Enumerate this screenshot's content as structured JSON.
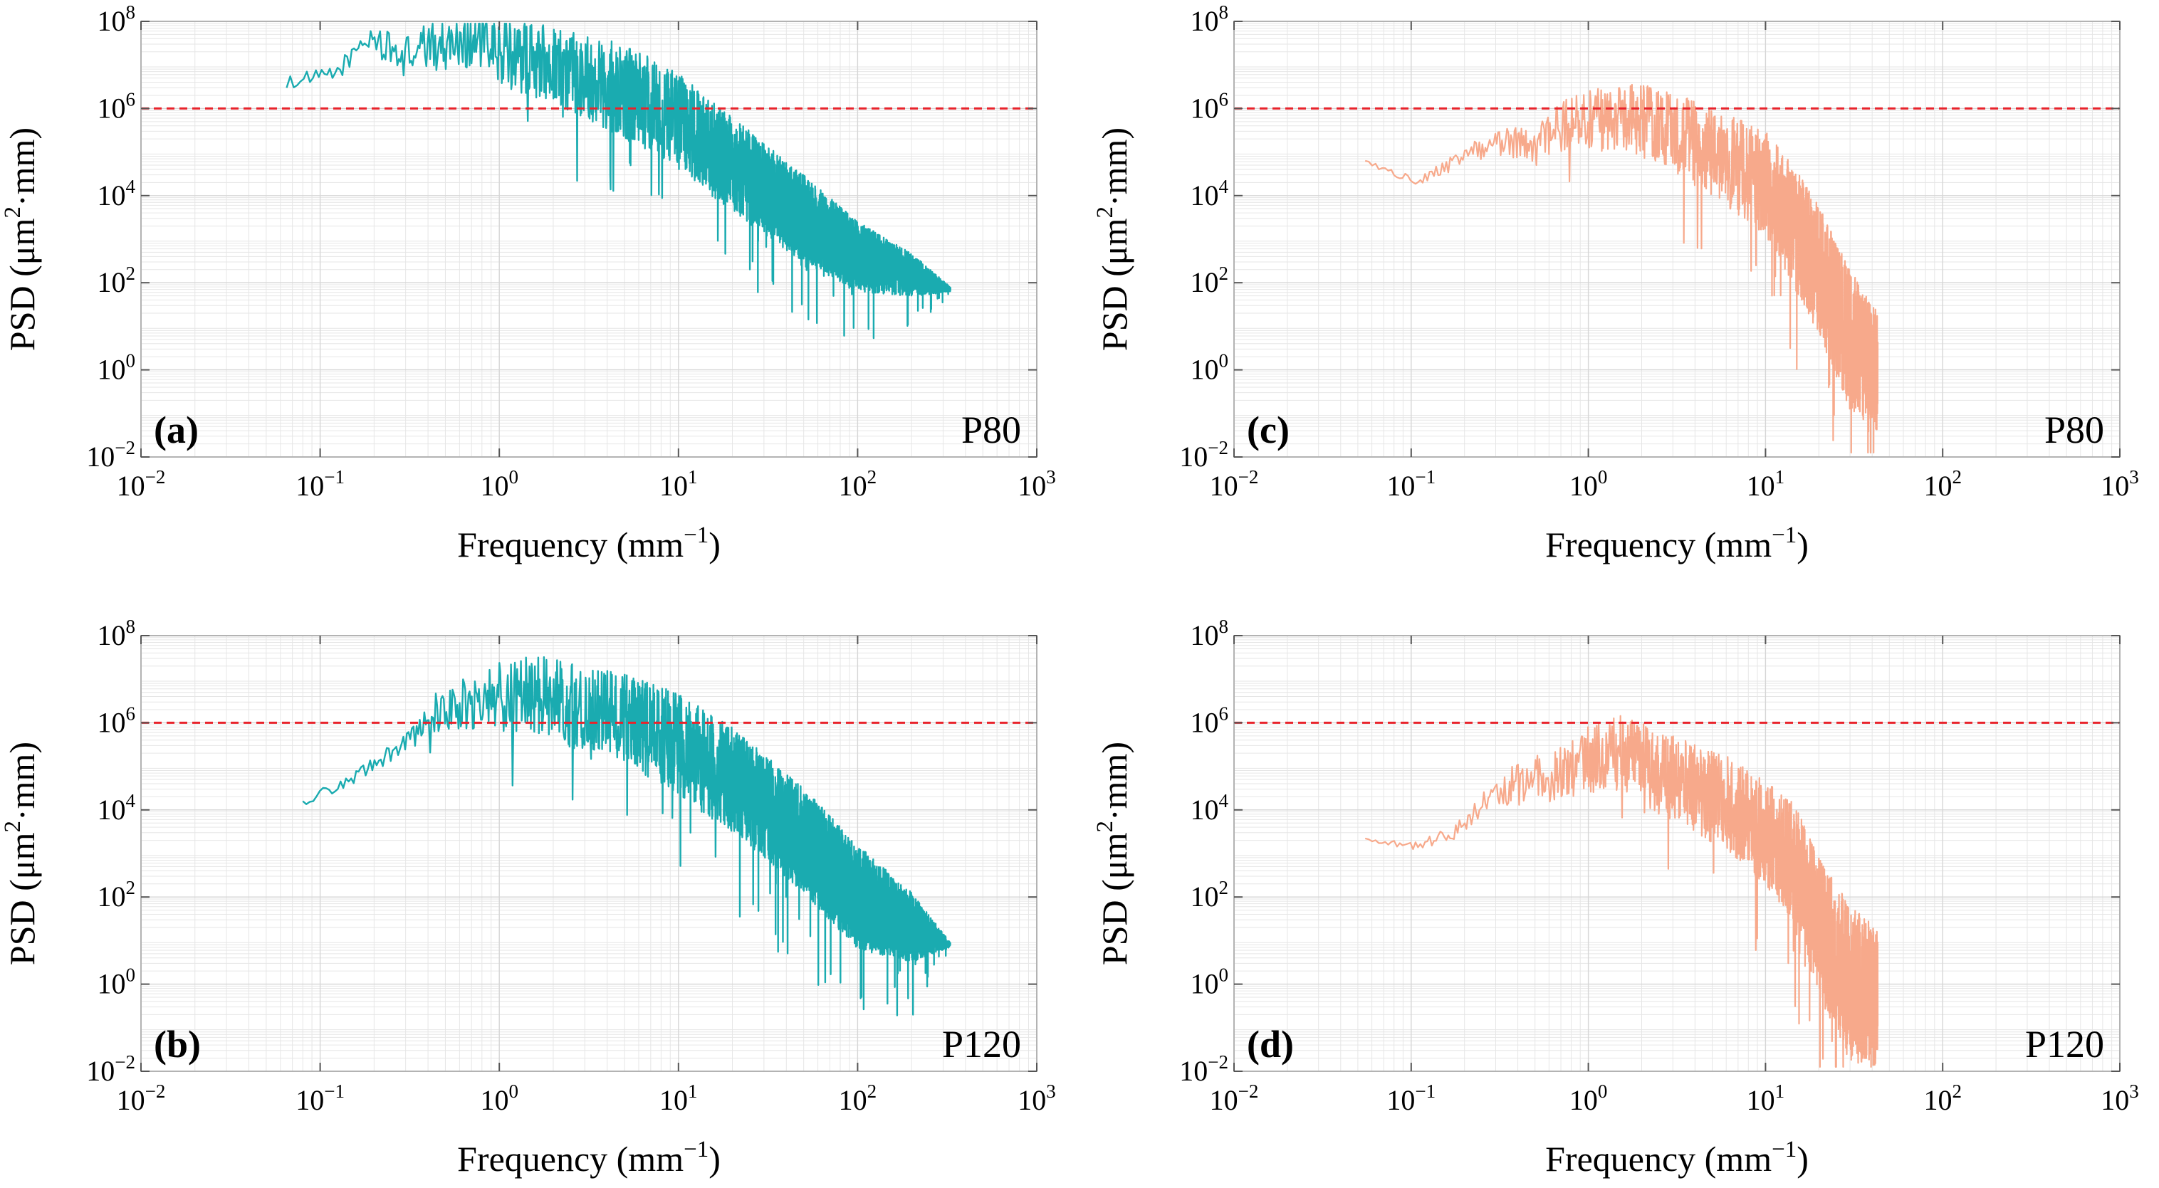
{
  "colors": {
    "teal": "#1aabb0",
    "salmon": "#f7a98b",
    "threshold": "#e8232b",
    "axis": "#b3b3b3",
    "grid": "#e6e6e6"
  },
  "shared": {
    "xlabel": "Frequency (mm",
    "xlabel_sup": "−1",
    "xlabel_end": ")",
    "ylabel_pre": "PSD (μm",
    "ylabel_sup": "2",
    "ylabel_post": "·mm)",
    "tick_base": "10",
    "x_tick_exps": [
      "−2",
      "−1",
      "0",
      "1",
      "2",
      "3"
    ],
    "y_tick_exps": [
      "−2",
      "0",
      "2",
      "4",
      "6",
      "8"
    ]
  },
  "panels": [
    {
      "panel_label": "(a)",
      "sample_label": "P80"
    },
    {
      "panel_label": "(b)",
      "sample_label": "P120"
    },
    {
      "panel_label": "(c)",
      "sample_label": "P80"
    },
    {
      "panel_label": "(d)",
      "sample_label": "P120"
    }
  ],
  "chart_data": [
    {
      "type": "line",
      "id": "a",
      "title": "(a)",
      "annotation": "P80",
      "xscale": "log",
      "yscale": "log",
      "xlim": [
        0.01,
        1000
      ],
      "ylim": [
        0.01,
        100000000
      ],
      "xlabel": "Frequency (mm⁻¹)",
      "ylabel": "PSD (μm²·mm)",
      "threshold": 1000000,
      "color": "teal",
      "envelope": {
        "x": [
          0.065,
          0.12,
          0.19,
          0.28,
          0.45,
          0.75,
          1.0,
          2.0,
          3.0,
          5.0,
          10.0,
          20.0,
          50.0,
          100.0,
          200.0,
          330.0
        ],
        "y": [
          4000000,
          6000000,
          45000000,
          15000000,
          30000000,
          45000000,
          20000000,
          10000000,
          6000000,
          2500000,
          500000,
          50000,
          3000,
          400,
          150,
          70
        ]
      },
      "spread_decades": [
        0.15,
        0.2,
        0.3,
        0.45,
        0.6,
        0.7,
        0.8,
        0.9,
        1.0,
        1.1,
        1.1,
        1.1,
        1.0,
        0.8,
        0.5,
        0.05
      ]
    },
    {
      "type": "line",
      "id": "b",
      "title": "(b)",
      "annotation": "P120",
      "xscale": "log",
      "yscale": "log",
      "xlim": [
        0.01,
        1000
      ],
      "ylim": [
        0.01,
        100000000
      ],
      "xlabel": "Frequency (mm⁻¹)",
      "ylabel": "PSD (μm²·mm)",
      "threshold": 1000000,
      "color": "teal",
      "envelope": {
        "x": [
          0.08,
          0.15,
          0.25,
          0.35,
          0.45,
          0.6,
          0.9,
          1.5,
          3.0,
          6.0,
          10.0,
          20.0,
          50.0,
          100.0,
          200.0,
          330.0
        ],
        "y": [
          15000,
          50000,
          200000,
          600000,
          2000000,
          2500000,
          4000000,
          5000000,
          2000000,
          1000000,
          300000,
          50000,
          2000,
          100,
          20,
          8
        ]
      },
      "spread_decades": [
        0.1,
        0.15,
        0.2,
        0.3,
        0.5,
        0.6,
        0.8,
        0.9,
        1.0,
        1.1,
        1.2,
        1.2,
        1.2,
        1.2,
        0.8,
        0.05
      ]
    },
    {
      "type": "line",
      "id": "c",
      "title": "(c)",
      "annotation": "P80",
      "xscale": "log",
      "yscale": "log",
      "xlim": [
        0.01,
        1000
      ],
      "ylim": [
        0.01,
        100000000
      ],
      "xlabel": "Frequency (mm⁻¹)",
      "ylabel": "PSD (μm²·mm)",
      "threshold": 1000000,
      "color": "salmon",
      "envelope": {
        "x": [
          0.055,
          0.11,
          0.2,
          0.35,
          0.5,
          0.8,
          1.5,
          2.5,
          5.0,
          10.0,
          15.0,
          20.0,
          30.0,
          43.0
        ],
        "y": [
          60000,
          20000,
          80000,
          200000,
          150000,
          500000,
          600000,
          400000,
          100000,
          20000,
          1500,
          200,
          5,
          1
        ]
      },
      "spread_decades": [
        0.05,
        0.1,
        0.2,
        0.4,
        0.5,
        0.6,
        0.8,
        0.9,
        1.0,
        1.2,
        1.4,
        1.5,
        1.6,
        1.4
      ]
    },
    {
      "type": "line",
      "id": "d",
      "title": "(d)",
      "annotation": "P120",
      "xscale": "log",
      "yscale": "log",
      "xlim": [
        0.01,
        1000
      ],
      "ylim": [
        0.01,
        100000000
      ],
      "xlabel": "Frequency (mm⁻¹)",
      "ylabel": "PSD (μm²·mm)",
      "threshold": 1000000,
      "color": "salmon",
      "envelope": {
        "x": [
          0.055,
          0.11,
          0.18,
          0.25,
          0.4,
          0.6,
          1.0,
          1.6,
          3.0,
          6.0,
          10.0,
          15.0,
          20.0,
          30.0,
          43.0
        ],
        "y": [
          2000,
          1500,
          3000,
          15000,
          40000,
          60000,
          150000,
          200000,
          50000,
          15000,
          3000,
          500,
          20,
          1,
          0.5
        ]
      },
      "spread_decades": [
        0.05,
        0.1,
        0.2,
        0.3,
        0.5,
        0.6,
        0.8,
        0.9,
        1.0,
        1.1,
        1.2,
        1.4,
        1.6,
        1.8,
        1.6
      ]
    }
  ]
}
